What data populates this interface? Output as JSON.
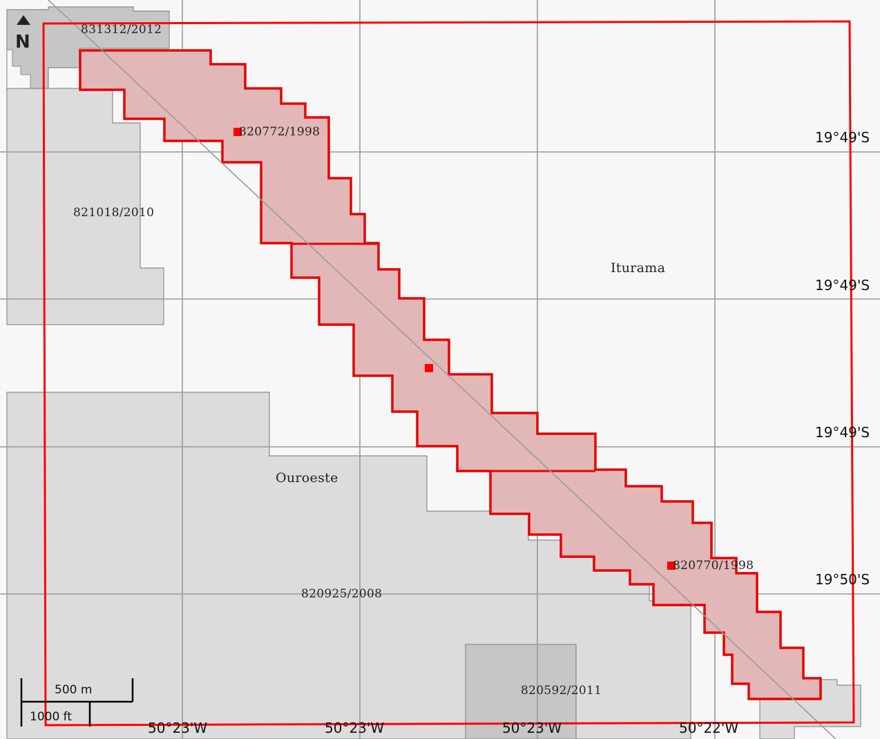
{
  "map": {
    "north_arrow_label": "N",
    "colors": {
      "background": "#f7f7f7",
      "parcel_light": "#dcdcdc",
      "parcel_dark": "#c6c6c6",
      "grid": "#999999",
      "boundary": "#ff0000",
      "target_fill": "#e2b7b7",
      "target_stroke": "#e60000"
    },
    "parcel_labels": {
      "p831312": "831312/2012",
      "p820772": "820772/1998",
      "p821018": "821018/2010",
      "p820770": "820770/1998",
      "p820925": "820925/2008",
      "p820592": "820592/2011"
    },
    "place_labels": {
      "iturama": "Iturama",
      "ouroeste": "Ouroeste"
    },
    "lat_labels": [
      "19°49'S",
      "19°49'S",
      "19°49'S",
      "19°50'S"
    ],
    "lon_labels": [
      "50°23'W",
      "50°23'W",
      "50°23'W",
      "50°22'W"
    ],
    "scale_bar": {
      "metric_label": "500 m",
      "imperial_label": "1000 ft"
    }
  }
}
